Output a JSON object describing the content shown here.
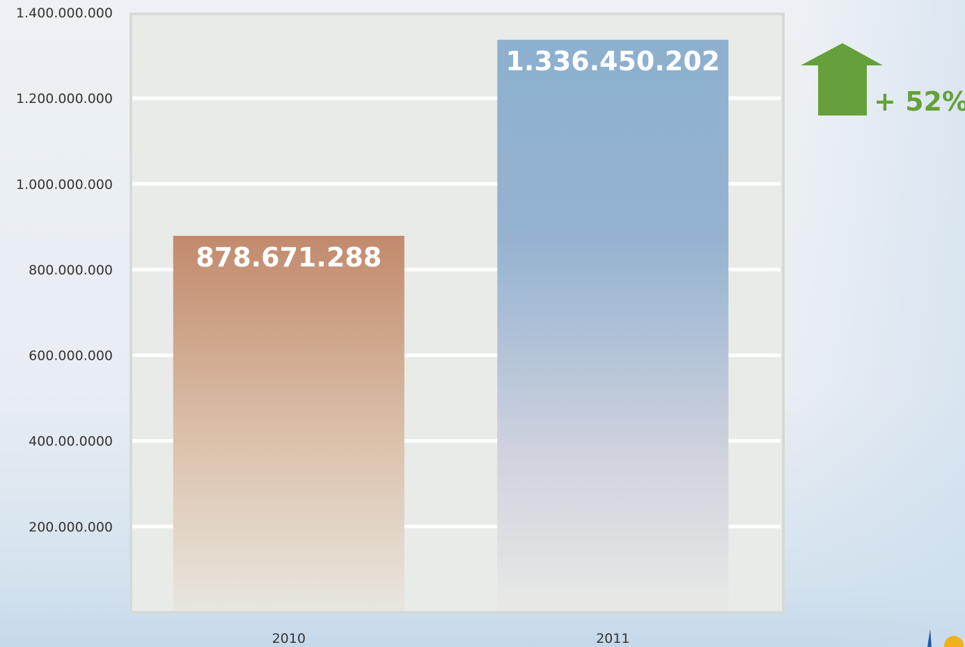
{
  "chart_data": {
    "type": "bar",
    "categories": [
      "2010",
      "2011"
    ],
    "values": [
      878671288,
      1336450202
    ],
    "value_labels": [
      "878.671.288",
      "1.336.450.202"
    ],
    "ylim": [
      0,
      1400000000
    ],
    "y_ticks": [
      200000000,
      400000000,
      600000000,
      800000000,
      1000000000,
      1200000000,
      1400000000
    ],
    "y_tick_labels": [
      "200.000.000",
      "400.00.0000",
      "600.000.000",
      "800.000.000",
      "1.000.000.000",
      "1.200.000.000",
      "1.400.000.000"
    ],
    "grid": true,
    "bar_colors": [
      "#c28a6c",
      "#8db0cf"
    ],
    "title": "",
    "xlabel": "",
    "ylabel": ""
  },
  "annotation": {
    "growth_label": "+ 52%",
    "arrow_icon": "up-arrow-icon",
    "color": "#66a03a"
  }
}
